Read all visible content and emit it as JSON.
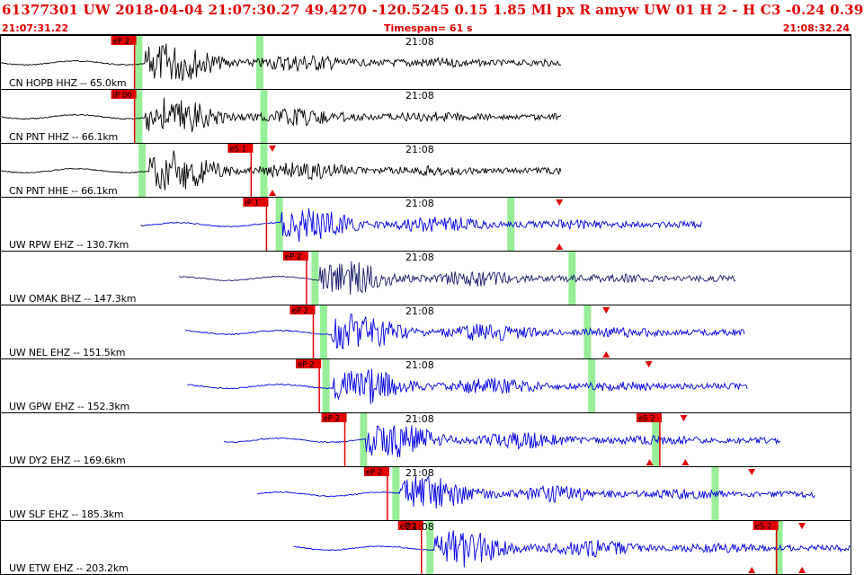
{
  "header": {
    "title": "61377301 UW 2018-04-04 21:07:30.27    49.4270 -120.5245    0.15  1.85 Ml  px  R  amyw      UW 01  H   2  -  H C3    -0.24  0.39",
    "start_time": "21:07:31.22",
    "timespan": "Timespan=  61 s",
    "end_time": "21:08:32.24"
  },
  "colors": {
    "header_text": "#e00000",
    "pick_flag": "#e00000",
    "green_marker": "#98ee98",
    "trace_black": "#000000",
    "trace_blue": "#0000e0",
    "trace_navy": "#1a1a6a"
  },
  "traces": [
    {
      "label": "CN HOPB HHZ -- 65.0km",
      "time": "21:08",
      "color": "black",
      "picks": [
        {
          "text": "eP 2",
          "pos": 0.158
        }
      ],
      "greens": [
        0.163,
        0.305
      ],
      "triangles": [],
      "start": 0.0,
      "end": 0.66,
      "onset": 0.17,
      "amp": 0.95
    },
    {
      "label": "CN PNT HHZ -- 66.1km",
      "time": "21:08",
      "color": "black",
      "picks": [
        {
          "text": "iP 00",
          "pos": 0.158
        }
      ],
      "greens": [
        0.163,
        0.31
      ],
      "triangles": [],
      "start": 0.0,
      "end": 0.66,
      "onset": 0.17,
      "amp": 0.9
    },
    {
      "label": "CN PNT HHE -- 66.1km",
      "time": "21:08",
      "color": "black",
      "picks": [
        {
          "text": "eS 1",
          "pos": 0.295
        }
      ],
      "greens": [
        0.167,
        0.31
      ],
      "triangles": [
        {
          "pos": 0.32,
          "dir": "down"
        },
        {
          "pos": 0.32,
          "dir": "up"
        }
      ],
      "start": 0.0,
      "end": 0.66,
      "onset": 0.175,
      "amp": 0.95
    },
    {
      "label": "UW RPW EHZ -- 130.7km",
      "time": "21:08",
      "color": "blue",
      "picks": [
        {
          "text": "iP 1",
          "pos": 0.313
        }
      ],
      "greens": [
        0.328,
        0.6
      ],
      "triangles": [
        {
          "pos": 0.657,
          "dir": "down"
        },
        {
          "pos": 0.657,
          "dir": "up"
        }
      ],
      "start": 0.165,
      "end": 0.825,
      "onset": 0.33,
      "amp": 0.85
    },
    {
      "label": "UW OMAK BHZ -- 147.3km",
      "time": "21:08",
      "color": "navy",
      "picks": [
        {
          "text": "eP 2",
          "pos": 0.36
        }
      ],
      "greens": [
        0.37,
        0.672
      ],
      "triangles": [],
      "start": 0.21,
      "end": 0.865,
      "onset": 0.375,
      "amp": 0.8
    },
    {
      "label": "UW NEL EHZ -- 151.5km",
      "time": "21:08",
      "color": "blue",
      "picks": [
        {
          "text": "eP 2",
          "pos": 0.368
        }
      ],
      "greens": [
        0.38,
        0.69
      ],
      "triangles": [
        {
          "pos": 0.712,
          "dir": "down"
        },
        {
          "pos": 0.712,
          "dir": "up"
        }
      ],
      "start": 0.218,
      "end": 0.875,
      "onset": 0.39,
      "amp": 0.9
    },
    {
      "label": "UW GPW EHZ -- 152.3km",
      "time": "21:08",
      "color": "blue",
      "picks": [
        {
          "text": "eP 2",
          "pos": 0.375
        }
      ],
      "greens": [
        0.383,
        0.695
      ],
      "triangles": [
        {
          "pos": 0.762,
          "dir": "down"
        }
      ],
      "start": 0.22,
      "end": 0.878,
      "onset": 0.392,
      "amp": 0.9
    },
    {
      "label": "UW DY2 EHZ -- 169.6km",
      "time": "21:08",
      "color": "blue",
      "picks": [
        {
          "text": "eP 2",
          "pos": 0.405
        },
        {
          "text": "eS 2",
          "pos": 0.775
        }
      ],
      "greens": [
        0.427,
        0.77
      ],
      "triangles": [
        {
          "pos": 0.763,
          "dir": "up"
        },
        {
          "pos": 0.803,
          "dir": "down"
        },
        {
          "pos": 0.805,
          "dir": "up"
        }
      ],
      "start": 0.263,
      "end": 0.918,
      "onset": 0.43,
      "amp": 0.85
    },
    {
      "label": "UW SLF EHZ -- 185.3km",
      "time": "21:08",
      "color": "blue",
      "picks": [
        {
          "text": "eP 2",
          "pos": 0.455
        }
      ],
      "greens": [
        0.465,
        0.84
      ],
      "triangles": [
        {
          "pos": 0.883,
          "dir": "down"
        }
      ],
      "start": 0.302,
      "end": 0.958,
      "onset": 0.47,
      "amp": 0.85
    },
    {
      "label": "UW ETW EHZ -- 203.2km",
      "time": "21:08",
      "color": "blue",
      "picks": [
        {
          "text": "eP 2",
          "pos": 0.495
        },
        {
          "text": "eS 2",
          "pos": 0.912
        }
      ],
      "greens": [
        0.505,
        0.915
      ],
      "triangles": [
        {
          "pos": 0.883,
          "dir": "up"
        },
        {
          "pos": 0.942,
          "dir": "down"
        },
        {
          "pos": 0.942,
          "dir": "up"
        }
      ],
      "start": 0.345,
      "end": 1.0,
      "onset": 0.51,
      "amp": 0.9
    }
  ]
}
